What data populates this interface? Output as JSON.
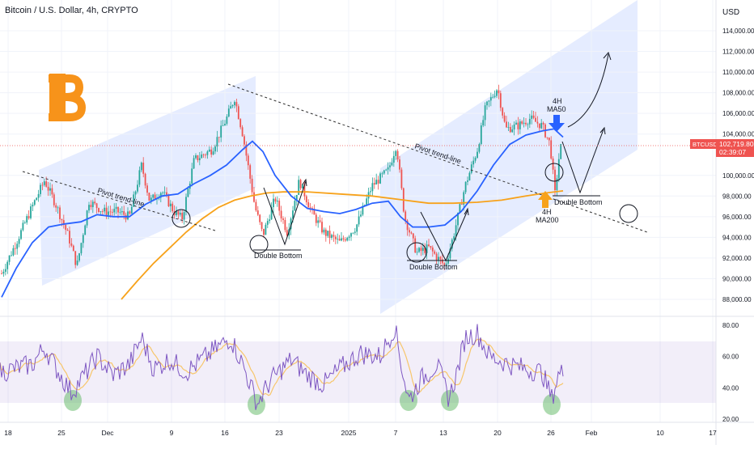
{
  "header": {
    "title": "Bitcoin / U.S. Dollar, 4h, CRYPTO"
  },
  "currency_label": "USD",
  "ticker": {
    "symbol": "BTCUSD",
    "price": "102,719.80",
    "countdown": "02:39:07"
  },
  "price_axis": {
    "ticks": [
      {
        "label": "114,000.00",
        "value": 114000
      },
      {
        "label": "112,000.00",
        "value": 112000
      },
      {
        "label": "110,000.00",
        "value": 110000
      },
      {
        "label": "108,000.00",
        "value": 108000
      },
      {
        "label": "106,000.00",
        "value": 106000
      },
      {
        "label": "104,000.00",
        "value": 104000
      },
      {
        "label": "100,000.00",
        "value": 100000
      },
      {
        "label": "98,000.00",
        "value": 98000
      },
      {
        "label": "96,000.00",
        "value": 96000
      },
      {
        "label": "94,000.00",
        "value": 94000
      },
      {
        "label": "92,000.00",
        "value": 92000
      },
      {
        "label": "90,000.00",
        "value": 90000
      },
      {
        "label": "88,000.00",
        "value": 88000
      }
    ]
  },
  "rsi_axis": {
    "ticks": [
      {
        "label": "80.00",
        "value": 80
      },
      {
        "label": "60.00",
        "value": 60
      },
      {
        "label": "40.00",
        "value": 40
      },
      {
        "label": "20.00",
        "value": 20
      }
    ]
  },
  "time_axis": {
    "ticks": [
      {
        "label": "18"
      },
      {
        "label": "25"
      },
      {
        "label": "Dec"
      },
      {
        "label": "9"
      },
      {
        "label": "16"
      },
      {
        "label": "23"
      },
      {
        "label": "2025"
      },
      {
        "label": "7"
      },
      {
        "label": "13"
      },
      {
        "label": "20"
      },
      {
        "label": "26"
      },
      {
        "label": "Feb"
      },
      {
        "label": "10"
      },
      {
        "label": "17"
      }
    ]
  },
  "annotations": {
    "pivot_trend_line_1": "Pivot trend-line",
    "pivot_trend_line_2": "Pivot trend-line",
    "double_bottom_1": "Double Bottom",
    "double_bottom_2": "Double Bottom",
    "double_bottom_3": "Double Bottom",
    "ma50_tf": "4H",
    "ma50_name": "MA50",
    "ma200_tf": "4H",
    "ma200_name": "MA200"
  },
  "colors": {
    "up_candle": "#26a69a",
    "down_candle": "#ef5350",
    "ma50": "#2962ff",
    "ma200": "#f7a21b",
    "channel": "#2962ff",
    "rsi_line": "#7e57c2",
    "rsi_ma": "#f7c66b",
    "bitcoin_logo": "#f7931a",
    "price_tag": "#ef5350"
  },
  "icons": {
    "logo": "bitcoin-logo-icon",
    "arrow_down": "blue-down-arrow-icon",
    "arrow_up": "orange-up-arrow-icon"
  }
}
